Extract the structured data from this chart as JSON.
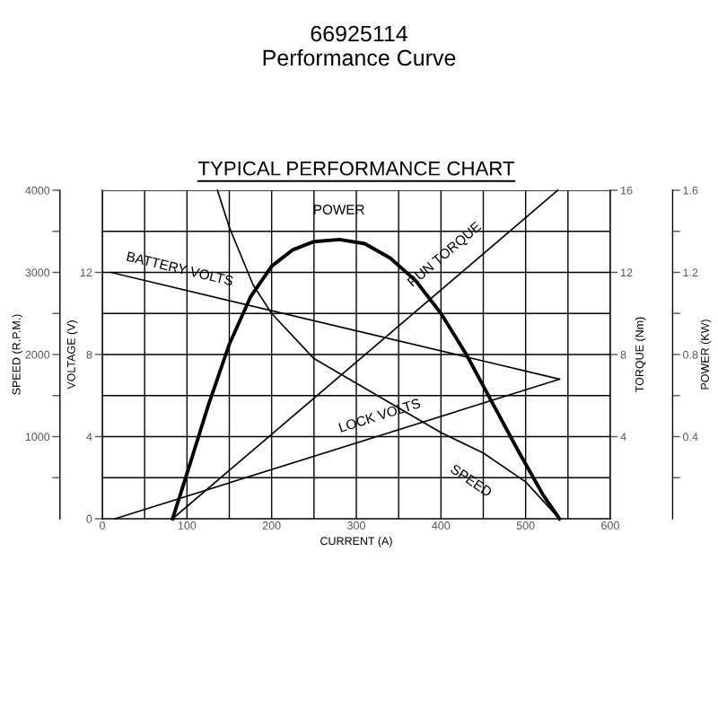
{
  "chart_data": [
    {
      "type": "line",
      "title": "66925114\nPerformance Curve",
      "subtitle": "TYPICAL PERFORMANCE CHART",
      "xlabel": "CURRENT (A)",
      "ylabel": "SPEED (R.P.M.)",
      "y2label": "POWER (KW)",
      "xlim": [
        0,
        600
      ],
      "xticks": [
        0,
        {
          "value": 50,
          "label": null
        },
        100,
        {
          "value": 150,
          "label": null
        },
        200,
        {
          "value": 250,
          "label": null
        },
        300,
        {
          "value": 350,
          "label": null
        },
        400,
        {
          "value": 450,
          "label": null
        },
        500,
        {
          "value": 550,
          "label": null
        },
        600
      ],
      "ylim": [
        0,
        4000
      ],
      "yticks": [
        {
          "value": 500,
          "label": null
        },
        1000,
        {
          "value": 1500,
          "label": null
        },
        2000,
        {
          "value": 2500,
          "label": null
        },
        3000,
        {
          "value": 3500,
          "label": null
        },
        4000
      ],
      "y2lim": [
        0,
        1.6
      ],
      "y2ticks": [
        {
          "value": 0.2,
          "label": null
        },
        0.4,
        {
          "value": 0.6,
          "label": null
        },
        0.8,
        {
          "value": 1.0,
          "label": null
        },
        1.2,
        {
          "value": 1.4,
          "label": null
        },
        1.6
      ],
      "grid": true,
      "marker": "none",
      "line_style": "solid",
      "series": [
        {
          "name": "POWER",
          "color": "#000000",
          "axis": "y2",
          "x": [
            83,
            100,
            125,
            150,
            175,
            200,
            225,
            250,
            280,
            310,
            340,
            370,
            400,
            430,
            460,
            490,
            520,
            540
          ],
          "values": [
            0,
            0.22,
            0.55,
            0.85,
            1.08,
            1.23,
            1.31,
            1.35,
            1.36,
            1.34,
            1.27,
            1.16,
            1.0,
            0.8,
            0.57,
            0.34,
            0.12,
            0
          ]
        },
        {
          "name": "SPEED",
          "color": "#000000",
          "x": [
            136,
            150,
            178,
            200,
            250,
            300,
            350,
            400,
            450,
            500,
            540
          ],
          "values": [
            4000,
            3550,
            2850,
            2500,
            1950,
            1650,
            1350,
            1050,
            800,
            450,
            0
          ]
        }
      ]
    },
    {
      "type": "line",
      "ylabel": "VOLTAGE (V)",
      "y2label": "TORQUE (Nm)",
      "tick_labels": "y",
      "xlim": [
        0,
        600
      ],
      "xticks": [
        0,
        100,
        200,
        300,
        400,
        500,
        600
      ],
      "ylim": [
        0,
        16
      ],
      "yticks": [
        0,
        4,
        8,
        12
      ],
      "y2lim": [
        0,
        16
      ],
      "y2ticks": [
        4,
        8,
        12,
        16
      ],
      "marker": "none",
      "line_style": "solid",
      "series": [
        {
          "name": "RUN TORQUE",
          "color": "#000000",
          "axis": "y2",
          "x": [
            83,
            538
          ],
          "values": [
            0,
            16
          ]
        },
        {
          "name": "BATTERY VOLTS",
          "color": "#000000",
          "x": [
            10,
            540
          ],
          "values": [
            12,
            6.8
          ]
        },
        {
          "name": "LOCK VOLTS",
          "color": "#000000",
          "x": [
            15,
            540
          ],
          "values": [
            0,
            6.8
          ]
        }
      ]
    }
  ]
}
